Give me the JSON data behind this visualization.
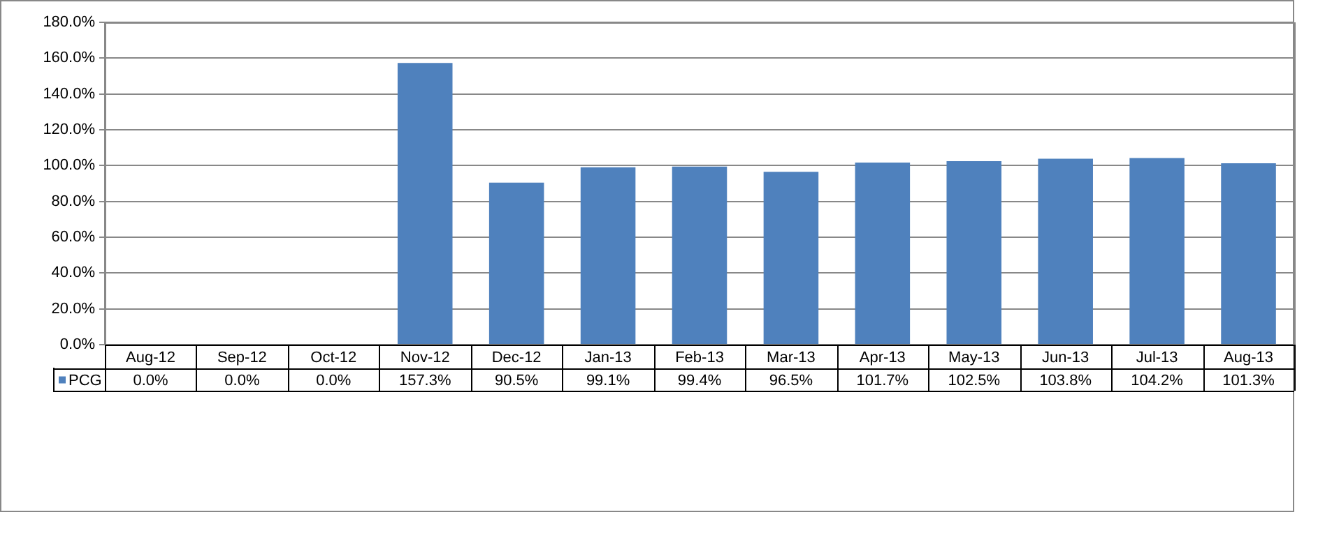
{
  "chart_data": {
    "type": "bar",
    "categories": [
      "Aug-12",
      "Sep-12",
      "Oct-12",
      "Nov-12",
      "Dec-12",
      "Jan-13",
      "Feb-13",
      "Mar-13",
      "Apr-13",
      "May-13",
      "Jun-13",
      "Jul-13",
      "Aug-13"
    ],
    "series": [
      {
        "name": "PCG",
        "color": "#4f81bd",
        "values": [
          0,
          0,
          0,
          157.3,
          90.5,
          99.1,
          99.4,
          96.5,
          101.7,
          102.5,
          103.8,
          104.2,
          101.3
        ],
        "value_labels": [
          "0.0%",
          "0.0%",
          "0.0%",
          "157.3%",
          "90.5%",
          "99.1%",
          "99.4%",
          "96.5%",
          "101.7%",
          "102.5%",
          "103.8%",
          "104.2%",
          "101.3%"
        ]
      }
    ],
    "ylim": [
      0,
      180
    ],
    "yticks": [
      {
        "value": 0,
        "label": "0.0%"
      },
      {
        "value": 20,
        "label": "20.0%"
      },
      {
        "value": 40,
        "label": "40.0%"
      },
      {
        "value": 60,
        "label": "60.0%"
      },
      {
        "value": 80,
        "label": "80.0%"
      },
      {
        "value": 100,
        "label": "100.0%"
      },
      {
        "value": 120,
        "label": "120.0%"
      },
      {
        "value": 140,
        "label": "140.0%"
      },
      {
        "value": 160,
        "label": "160.0%"
      },
      {
        "value": 180,
        "label": "180.0%"
      }
    ],
    "grid": true
  }
}
